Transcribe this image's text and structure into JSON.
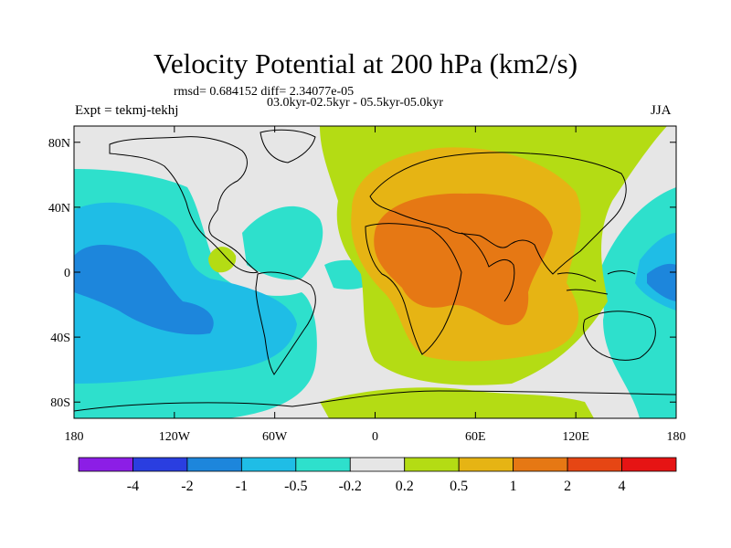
{
  "title": "Velocity Potential at 200 hPa (km2/s)",
  "rmsd_line": "rmsd= 0.684152 diff= 2.34077e-05",
  "period_line": "03.0kyr-02.5kyr - 05.5kyr-05.0kyr",
  "expt_label": "Expt = tekmj-tekhj",
  "season_label": "JJA",
  "lat_ticks": [
    "80N",
    "40N",
    "0",
    "40S",
    "80S"
  ],
  "lon_ticks": [
    "180",
    "120W",
    "60W",
    "0",
    "60E",
    "120E",
    "180"
  ],
  "colorbar": {
    "labels": [
      "-4",
      "-2",
      "-1",
      "-0.5",
      "-0.2",
      "0.2",
      "0.5",
      "1",
      "2",
      "4"
    ],
    "colors": [
      "#8c1ee6",
      "#2a3ee0",
      "#1d86dc",
      "#1fbde6",
      "#2ee0cc",
      "#e6e6e6",
      "#b4dc14",
      "#e6b414",
      "#e67814",
      "#e64614",
      "#e61414"
    ]
  },
  "map_colors": {
    "neutral": "#e6e6e6",
    "pos_weak": "#b4dc14",
    "pos_mid": "#e6b414",
    "pos_strong": "#e67814",
    "neg_weak": "#2ee0cc",
    "neg_mid": "#1fbde6",
    "neg_strong": "#1d86dc",
    "coast": "#000000"
  }
}
